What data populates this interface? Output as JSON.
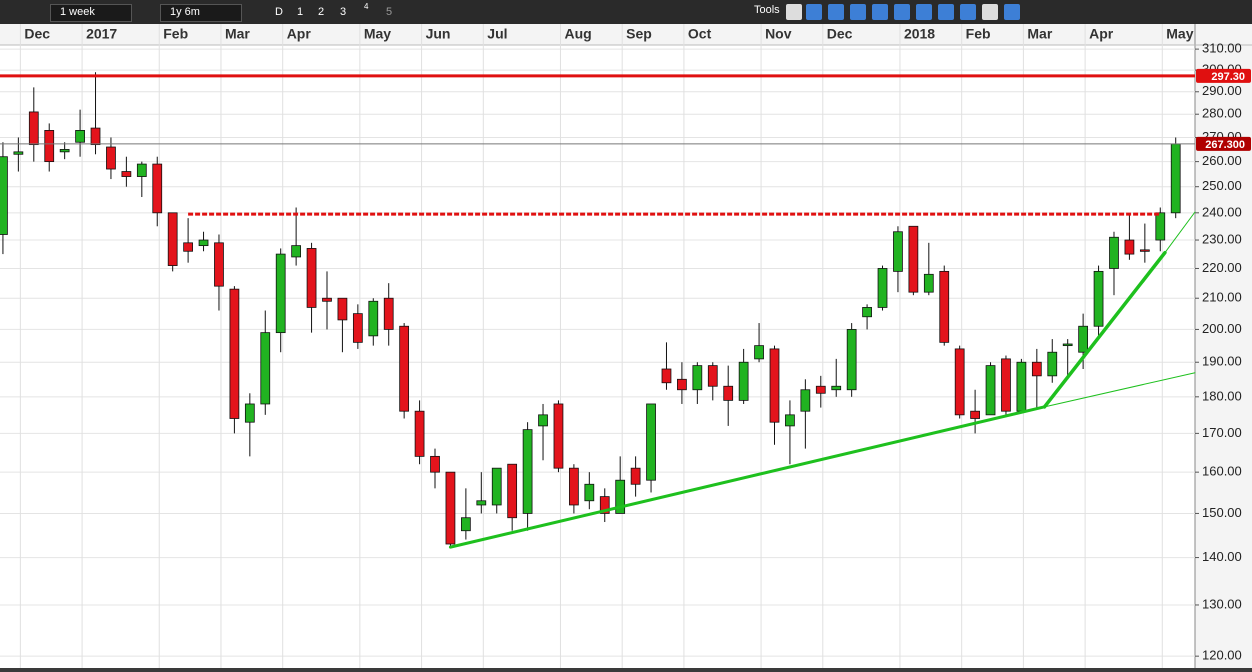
{
  "toolbar": {
    "interval": "1 week",
    "range": "1y 6m",
    "buttons": [
      "D",
      "1",
      "2",
      "3",
      "4",
      "5"
    ],
    "tools": "Tools"
  },
  "chart_data": {
    "type": "candlestick",
    "log_scale": true,
    "grid": true,
    "categories": [
      null,
      "Dec",
      null,
      null,
      null,
      "2017",
      null,
      null,
      null,
      null,
      "Feb",
      null,
      null,
      null,
      "Mar",
      null,
      null,
      null,
      "Apr",
      null,
      null,
      null,
      null,
      "May",
      null,
      null,
      null,
      "Jun",
      null,
      null,
      null,
      "Jul",
      null,
      null,
      null,
      null,
      "Aug",
      null,
      null,
      null,
      "Sep",
      null,
      null,
      null,
      "Oct",
      null,
      null,
      null,
      null,
      "Nov",
      null,
      null,
      null,
      "Dec",
      null,
      null,
      null,
      null,
      "2018",
      null,
      null,
      null,
      "Feb",
      null,
      null,
      null,
      "Mar",
      null,
      null,
      null,
      "Apr",
      null,
      null,
      null,
      null,
      "May",
      null
    ],
    "open": [
      232,
      263,
      281,
      273,
      264,
      268,
      274,
      266,
      256,
      254,
      259,
      240,
      229,
      228,
      229,
      213,
      173,
      178,
      199,
      224,
      227,
      210,
      210,
      205,
      198,
      210,
      201,
      176,
      164,
      160,
      146,
      152,
      152,
      162,
      150,
      172,
      178,
      161,
      153,
      154,
      150,
      161,
      158,
      188,
      185,
      182,
      189,
      183,
      179,
      191,
      194,
      172,
      176,
      183,
      182,
      182,
      204,
      207,
      219,
      235,
      212,
      219,
      194,
      176,
      175,
      191,
      176,
      190,
      186,
      195,
      193,
      201,
      220,
      230,
      226.5,
      230,
      240
    ],
    "high": [
      268,
      270,
      292,
      276,
      268,
      282,
      299,
      270,
      262,
      260,
      262,
      240,
      238,
      233,
      232,
      214,
      181,
      206,
      227,
      242,
      229,
      219,
      210,
      208,
      210,
      215,
      202,
      179,
      166,
      160,
      156,
      160,
      161,
      162,
      173,
      178,
      179,
      162,
      160,
      156,
      164,
      164,
      178,
      196,
      190,
      190,
      190,
      189,
      194,
      202,
      195,
      179,
      185,
      186,
      191,
      202,
      208,
      221,
      235,
      235,
      229,
      221,
      195,
      182,
      190,
      192,
      191,
      194,
      197,
      197,
      205,
      221,
      233,
      239,
      236,
      242,
      270
    ],
    "low": [
      225,
      256,
      260,
      256,
      261,
      262,
      263,
      253,
      250,
      246,
      235,
      219,
      222,
      226,
      206,
      170,
      164,
      175,
      193,
      221,
      199,
      200,
      193,
      194,
      195,
      195,
      174,
      162,
      156,
      142,
      144,
      150,
      150,
      146,
      146,
      163,
      160,
      150,
      151,
      148,
      150,
      154,
      155,
      182,
      178,
      178,
      179,
      172,
      178,
      190,
      167,
      162,
      166,
      177,
      180,
      180,
      200,
      206,
      212,
      211,
      211,
      195,
      174,
      170,
      175,
      175,
      176,
      177,
      184,
      186,
      188,
      198,
      211,
      223,
      222,
      226,
      238
    ],
    "close": [
      262,
      264,
      267,
      260,
      265,
      273,
      267,
      257,
      254,
      259,
      240,
      221,
      226,
      230,
      214,
      174,
      178,
      199,
      225,
      228,
      207,
      209,
      203,
      196,
      209,
      200,
      176,
      164,
      160,
      143,
      149,
      153,
      161,
      149,
      171,
      175,
      161,
      152,
      157,
      150,
      158,
      157,
      178,
      184,
      182,
      189,
      183,
      179,
      190,
      195,
      173,
      175,
      182,
      181,
      183,
      200,
      207,
      220,
      233,
      212,
      218,
      196,
      175,
      174,
      189,
      176,
      190,
      186,
      193,
      195.5,
      201,
      219,
      231,
      225,
      226,
      240,
      267.3
    ],
    "up_color": "#21b321",
    "down_color": "#e3141c",
    "xlim": [
      -0.19,
      77.25
    ],
    "ylim": [
      117.8,
      312
    ],
    "yticks": [
      {
        "value": 120,
        "label": "120.00"
      },
      {
        "value": 130,
        "label": "130.00"
      },
      {
        "value": 140,
        "label": "140.00"
      },
      {
        "value": 150,
        "label": "150.00"
      },
      {
        "value": 160,
        "label": "160.00"
      },
      {
        "value": 170,
        "label": "170.00"
      },
      {
        "value": 180,
        "label": "180.00"
      },
      {
        "value": 190,
        "label": "190.00"
      },
      {
        "value": 200,
        "label": "200.00"
      },
      {
        "value": 210,
        "label": "210.00"
      },
      {
        "value": 220,
        "label": "220.00"
      },
      {
        "value": 230,
        "label": "230.00"
      },
      {
        "value": 240,
        "label": "240.00"
      },
      {
        "value": 250,
        "label": "250.00"
      },
      {
        "value": 260,
        "label": "260.00"
      },
      {
        "value": 270,
        "label": "270.00"
      },
      {
        "value": 280,
        "label": "280.00"
      },
      {
        "value": 290,
        "label": "290.00"
      },
      {
        "value": 300,
        "label": "300.00"
      },
      {
        "value": 310,
        "label": "310.00"
      }
    ],
    "hlines": [
      {
        "value": 297.3,
        "label": "297.30",
        "color": "#e01010",
        "width": 3
      },
      {
        "value": 267.3,
        "label": "267.300",
        "color": "#777777",
        "width": 1,
        "box": "#b00000"
      }
    ],
    "levels": [
      {
        "value": 239.5,
        "from": 12,
        "to": 75,
        "color": "#e01010"
      }
    ],
    "trendlines": [
      {
        "points": [
          [
            29,
            142.3
          ],
          [
            67.5,
            177.2
          ]
        ],
        "color": "#1ec01e",
        "width": 3
      },
      {
        "points": [
          [
            67.5,
            177.2
          ],
          [
            77.25,
            186.9
          ]
        ],
        "color": "#1ec01e",
        "width": 1
      },
      {
        "points": [
          [
            67.5,
            177.2
          ],
          [
            75.3,
            225.5
          ]
        ],
        "color": "#1ec01e",
        "width": 3.5
      },
      {
        "points": [
          [
            75.3,
            225.5
          ],
          [
            77.25,
            240.3
          ]
        ],
        "color": "#1ec01e",
        "width": 1
      }
    ]
  }
}
